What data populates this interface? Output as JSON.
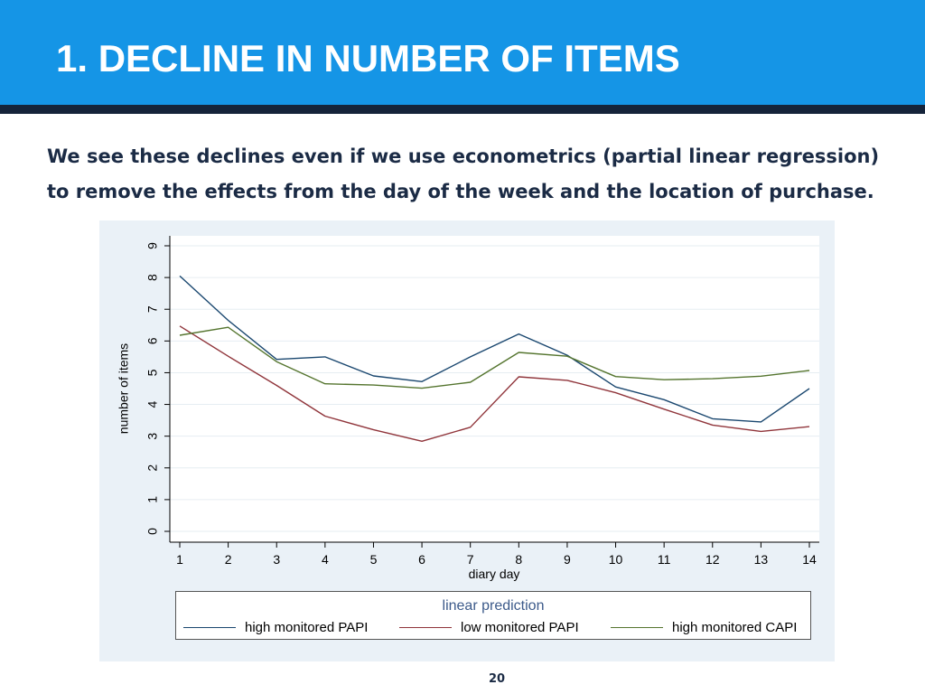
{
  "slide": {
    "title": "1. DECLINE IN NUMBER OF ITEMS",
    "subtitle": "We see these declines even if we use econometrics (partial linear regression) to remove the effects from the day of the week and the location of purchase.",
    "page_number": "20",
    "colors": {
      "header": "#1595e6",
      "header_rule": "#15243a",
      "text_dark": "#1b2b45",
      "panel_bg": "#eaf1f7"
    }
  },
  "chart_data": {
    "type": "line",
    "xlabel": "diary day",
    "ylabel": "number of items",
    "legend_title": "linear prediction",
    "legend_position": "bottom",
    "grid": true,
    "x": [
      1,
      2,
      3,
      4,
      5,
      6,
      7,
      8,
      9,
      10,
      11,
      12,
      13,
      14
    ],
    "xlim": [
      1,
      14
    ],
    "ylim": [
      0,
      9
    ],
    "yticks": [
      0,
      1,
      2,
      3,
      4,
      5,
      6,
      7,
      8,
      9
    ],
    "series": [
      {
        "name": "high monitored PAPI",
        "color": "#1a476f",
        "values": [
          8.05,
          6.65,
          5.42,
          5.5,
          4.9,
          4.72,
          5.5,
          6.22,
          5.55,
          4.55,
          4.15,
          3.55,
          3.45,
          4.5
        ]
      },
      {
        "name": "low monitored PAPI",
        "color": "#90353b",
        "values": [
          6.47,
          5.52,
          4.6,
          3.63,
          3.2,
          2.84,
          3.28,
          4.87,
          4.76,
          4.37,
          3.85,
          3.35,
          3.15,
          3.3
        ]
      },
      {
        "name": "high monitored CAPI",
        "color": "#55752f",
        "values": [
          6.18,
          6.43,
          5.35,
          4.65,
          4.61,
          4.51,
          4.7,
          5.64,
          5.52,
          4.88,
          4.78,
          4.81,
          4.89,
          5.07
        ]
      }
    ]
  }
}
